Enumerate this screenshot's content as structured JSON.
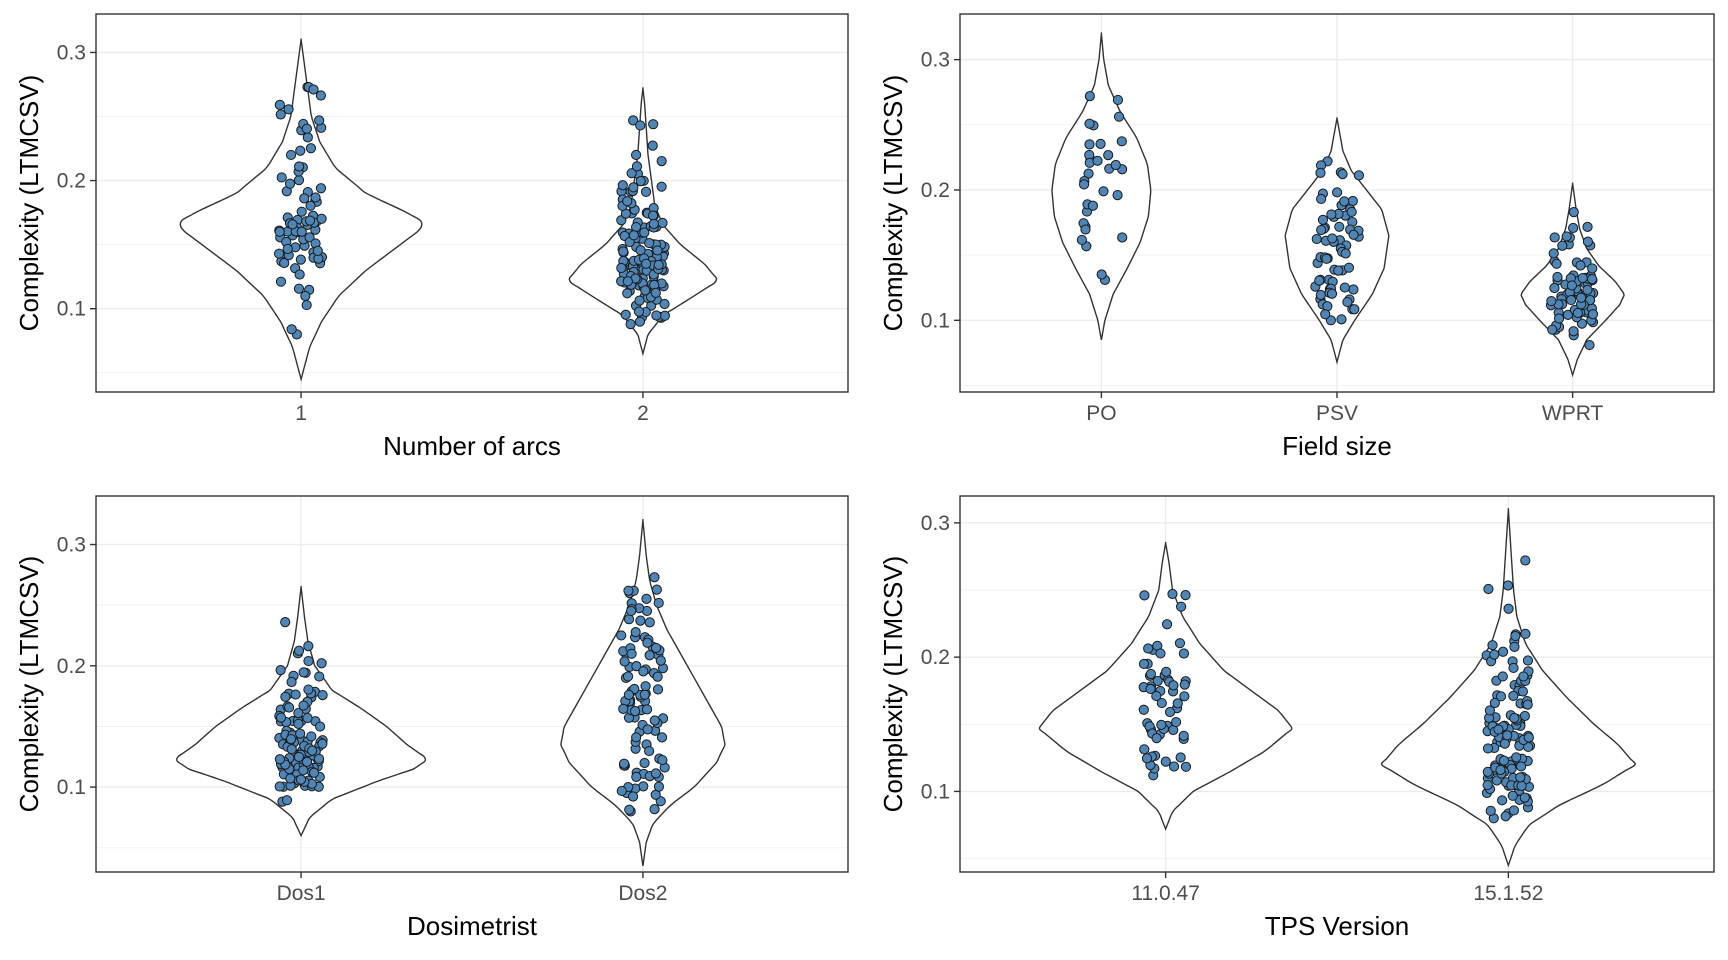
{
  "colors": {
    "point_fill": "#4f86b8",
    "point_stroke": "#1a1a1a",
    "violin_stroke": "#333333"
  },
  "chart_data": [
    {
      "type": "violin",
      "xlabel": "Number of arcs",
      "ylabel": "Complexity (LTMCSV)",
      "categories": [
        "1",
        "2"
      ],
      "ylim": [
        0.035,
        0.33
      ],
      "yticks": [
        0.1,
        0.2,
        0.3
      ],
      "ytick_labels": [
        "0.1",
        "0.2",
        "0.3"
      ],
      "grid": true,
      "groups": [
        {
          "category": "1",
          "n_points": 80,
          "data_min": 0.08,
          "data_max": 0.273,
          "violin_range": [
            0.045,
            0.31
          ],
          "density_peak_y": 0.167,
          "density_peak_halfwidth": 0.72,
          "density": [
            [
              0.045,
              0.0
            ],
            [
              0.07,
              0.05
            ],
            [
              0.09,
              0.12
            ],
            [
              0.11,
              0.22
            ],
            [
              0.13,
              0.38
            ],
            [
              0.15,
              0.58
            ],
            [
              0.16,
              0.68
            ],
            [
              0.167,
              0.72
            ],
            [
              0.175,
              0.62
            ],
            [
              0.19,
              0.38
            ],
            [
              0.21,
              0.2
            ],
            [
              0.23,
              0.11
            ],
            [
              0.25,
              0.06
            ],
            [
              0.27,
              0.04
            ],
            [
              0.29,
              0.02
            ],
            [
              0.31,
              0.0
            ]
          ]
        },
        {
          "category": "2",
          "n_points": 140,
          "data_min": 0.088,
          "data_max": 0.247,
          "violin_range": [
            0.065,
            0.272
          ],
          "density_peak_y": 0.122,
          "density_peak_halfwidth": 0.44,
          "density": [
            [
              0.065,
              0.0
            ],
            [
              0.08,
              0.03
            ],
            [
              0.095,
              0.12
            ],
            [
              0.11,
              0.3
            ],
            [
              0.122,
              0.44
            ],
            [
              0.135,
              0.36
            ],
            [
              0.15,
              0.22
            ],
            [
              0.165,
              0.12
            ],
            [
              0.18,
              0.07
            ],
            [
              0.2,
              0.05
            ],
            [
              0.22,
              0.03
            ],
            [
              0.24,
              0.02
            ],
            [
              0.26,
              0.01
            ],
            [
              0.272,
              0.0
            ]
          ]
        }
      ]
    },
    {
      "type": "violin",
      "xlabel": "Field size",
      "ylabel": "Complexity (LTMCSV)",
      "categories": [
        "PO",
        "PSV",
        "WPRT"
      ],
      "ylim": [
        0.045,
        0.335
      ],
      "yticks": [
        0.1,
        0.2,
        0.3
      ],
      "ytick_labels": [
        "0.1",
        "0.2",
        "0.3"
      ],
      "grid": true,
      "groups": [
        {
          "category": "PO",
          "n_points": 32,
          "data_min": 0.131,
          "data_max": 0.272,
          "violin_range": [
            0.085,
            0.32
          ],
          "density_peak_y": 0.2,
          "density_peak_halfwidth": 0.42,
          "density": [
            [
              0.085,
              0.0
            ],
            [
              0.1,
              0.03
            ],
            [
              0.12,
              0.1
            ],
            [
              0.14,
              0.22
            ],
            [
              0.16,
              0.33
            ],
            [
              0.18,
              0.4
            ],
            [
              0.2,
              0.42
            ],
            [
              0.22,
              0.39
            ],
            [
              0.24,
              0.3
            ],
            [
              0.26,
              0.16
            ],
            [
              0.28,
              0.06
            ],
            [
              0.3,
              0.02
            ],
            [
              0.32,
              0.0
            ]
          ]
        },
        {
          "category": "PSV",
          "n_points": 70,
          "data_min": 0.1,
          "data_max": 0.222,
          "violin_range": [
            0.068,
            0.255
          ],
          "density_peak_y": 0.165,
          "density_peak_halfwidth": 0.44,
          "density": [
            [
              0.068,
              0.0
            ],
            [
              0.085,
              0.05
            ],
            [
              0.1,
              0.15
            ],
            [
              0.12,
              0.3
            ],
            [
              0.14,
              0.4
            ],
            [
              0.165,
              0.44
            ],
            [
              0.185,
              0.38
            ],
            [
              0.2,
              0.25
            ],
            [
              0.215,
              0.12
            ],
            [
              0.23,
              0.05
            ],
            [
              0.245,
              0.02
            ],
            [
              0.255,
              0.0
            ]
          ]
        },
        {
          "category": "WPRT",
          "n_points": 80,
          "data_min": 0.081,
          "data_max": 0.183,
          "violin_range": [
            0.058,
            0.205
          ],
          "density_peak_y": 0.12,
          "density_peak_halfwidth": 0.44,
          "density": [
            [
              0.058,
              0.0
            ],
            [
              0.07,
              0.04
            ],
            [
              0.085,
              0.12
            ],
            [
              0.1,
              0.28
            ],
            [
              0.112,
              0.4
            ],
            [
              0.12,
              0.44
            ],
            [
              0.13,
              0.36
            ],
            [
              0.142,
              0.22
            ],
            [
              0.155,
              0.12
            ],
            [
              0.17,
              0.06
            ],
            [
              0.185,
              0.03
            ],
            [
              0.205,
              0.0
            ]
          ]
        }
      ]
    },
    {
      "type": "violin",
      "xlabel": "Dosimetrist",
      "ylabel": "Complexity (LTMCSV)",
      "categories": [
        "Dos1",
        "Dos2"
      ],
      "ylim": [
        0.03,
        0.34
      ],
      "yticks": [
        0.1,
        0.2,
        0.3
      ],
      "ytick_labels": [
        "0.1",
        "0.2",
        "0.3"
      ],
      "grid": true,
      "groups": [
        {
          "category": "Dos1",
          "n_points": 120,
          "data_min": 0.088,
          "data_max": 0.236,
          "violin_range": [
            0.06,
            0.265
          ],
          "density_peak_y": 0.123,
          "density_peak_halfwidth": 0.74,
          "density": [
            [
              0.06,
              0.0
            ],
            [
              0.075,
              0.05
            ],
            [
              0.09,
              0.18
            ],
            [
              0.105,
              0.45
            ],
            [
              0.115,
              0.66
            ],
            [
              0.123,
              0.74
            ],
            [
              0.135,
              0.62
            ],
            [
              0.15,
              0.5
            ],
            [
              0.165,
              0.35
            ],
            [
              0.18,
              0.18
            ],
            [
              0.2,
              0.08
            ],
            [
              0.22,
              0.04
            ],
            [
              0.24,
              0.02
            ],
            [
              0.265,
              0.0
            ]
          ]
        },
        {
          "category": "Dos2",
          "n_points": 100,
          "data_min": 0.08,
          "data_max": 0.273,
          "violin_range": [
            0.035,
            0.32
          ],
          "density_peak_y": 0.135,
          "density_peak_halfwidth": 0.48,
          "density": [
            [
              0.035,
              0.0
            ],
            [
              0.055,
              0.02
            ],
            [
              0.07,
              0.06
            ],
            [
              0.085,
              0.16
            ],
            [
              0.1,
              0.3
            ],
            [
              0.12,
              0.43
            ],
            [
              0.135,
              0.48
            ],
            [
              0.15,
              0.46
            ],
            [
              0.17,
              0.38
            ],
            [
              0.19,
              0.3
            ],
            [
              0.21,
              0.22
            ],
            [
              0.23,
              0.14
            ],
            [
              0.25,
              0.08
            ],
            [
              0.27,
              0.04
            ],
            [
              0.29,
              0.02
            ],
            [
              0.32,
              0.0
            ]
          ]
        }
      ]
    },
    {
      "type": "violin",
      "xlabel": "TPS Version",
      "ylabel": "Complexity (LTMCSV)",
      "categories": [
        "11.0.47",
        "15.1.52"
      ],
      "ylim": [
        0.04,
        0.32
      ],
      "yticks": [
        0.1,
        0.2,
        0.3
      ],
      "ytick_labels": [
        "0.1",
        "0.2",
        "0.3"
      ],
      "grid": true,
      "groups": [
        {
          "category": "11.0.47",
          "n_points": 60,
          "data_min": 0.112,
          "data_max": 0.247,
          "violin_range": [
            0.072,
            0.285
          ],
          "density_peak_y": 0.147,
          "density_peak_halfwidth": 0.74,
          "density": [
            [
              0.072,
              0.0
            ],
            [
              0.085,
              0.04
            ],
            [
              0.1,
              0.16
            ],
            [
              0.115,
              0.38
            ],
            [
              0.13,
              0.58
            ],
            [
              0.147,
              0.74
            ],
            [
              0.16,
              0.66
            ],
            [
              0.175,
              0.5
            ],
            [
              0.19,
              0.34
            ],
            [
              0.21,
              0.2
            ],
            [
              0.23,
              0.1
            ],
            [
              0.25,
              0.04
            ],
            [
              0.27,
              0.02
            ],
            [
              0.285,
              0.0
            ]
          ]
        },
        {
          "category": "15.1.52",
          "n_points": 130,
          "data_min": 0.08,
          "data_max": 0.272,
          "violin_range": [
            0.045,
            0.31
          ],
          "density_peak_y": 0.12,
          "density_peak_halfwidth": 0.74,
          "density": [
            [
              0.045,
              0.0
            ],
            [
              0.06,
              0.04
            ],
            [
              0.075,
              0.12
            ],
            [
              0.09,
              0.3
            ],
            [
              0.105,
              0.55
            ],
            [
              0.12,
              0.74
            ],
            [
              0.135,
              0.64
            ],
            [
              0.15,
              0.5
            ],
            [
              0.17,
              0.34
            ],
            [
              0.19,
              0.2
            ],
            [
              0.21,
              0.1
            ],
            [
              0.23,
              0.05
            ],
            [
              0.25,
              0.03
            ],
            [
              0.27,
              0.02
            ],
            [
              0.29,
              0.01
            ],
            [
              0.31,
              0.0
            ]
          ]
        }
      ]
    }
  ]
}
